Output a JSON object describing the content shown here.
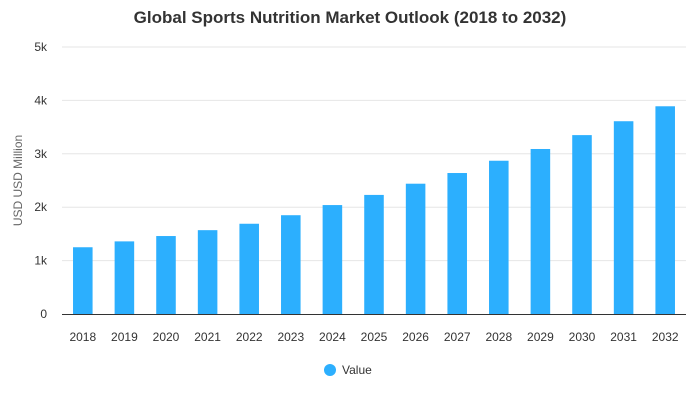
{
  "chart_data": {
    "type": "bar",
    "title": "Global Sports Nutrition Market Outlook (2018 to 2032)",
    "xlabel": "",
    "ylabel": "USD USD Million",
    "categories": [
      "2018",
      "2019",
      "2020",
      "2021",
      "2022",
      "2023",
      "2024",
      "2025",
      "2026",
      "2027",
      "2028",
      "2029",
      "2030",
      "2031",
      "2032"
    ],
    "series": [
      {
        "name": "Value",
        "color": "#2caffe",
        "values": [
          1250,
          1360,
          1460,
          1570,
          1690,
          1850,
          2040,
          2230,
          2440,
          2640,
          2870,
          3090,
          3350,
          3610,
          3890
        ]
      }
    ],
    "ylim": [
      0,
      5000
    ],
    "yticks": [
      0,
      1000,
      2000,
      3000,
      4000,
      5000
    ],
    "ytick_labels": [
      "0",
      "1k",
      "2k",
      "3k",
      "4k",
      "5k"
    ],
    "grid": true,
    "legend_position": "bottom-center"
  }
}
